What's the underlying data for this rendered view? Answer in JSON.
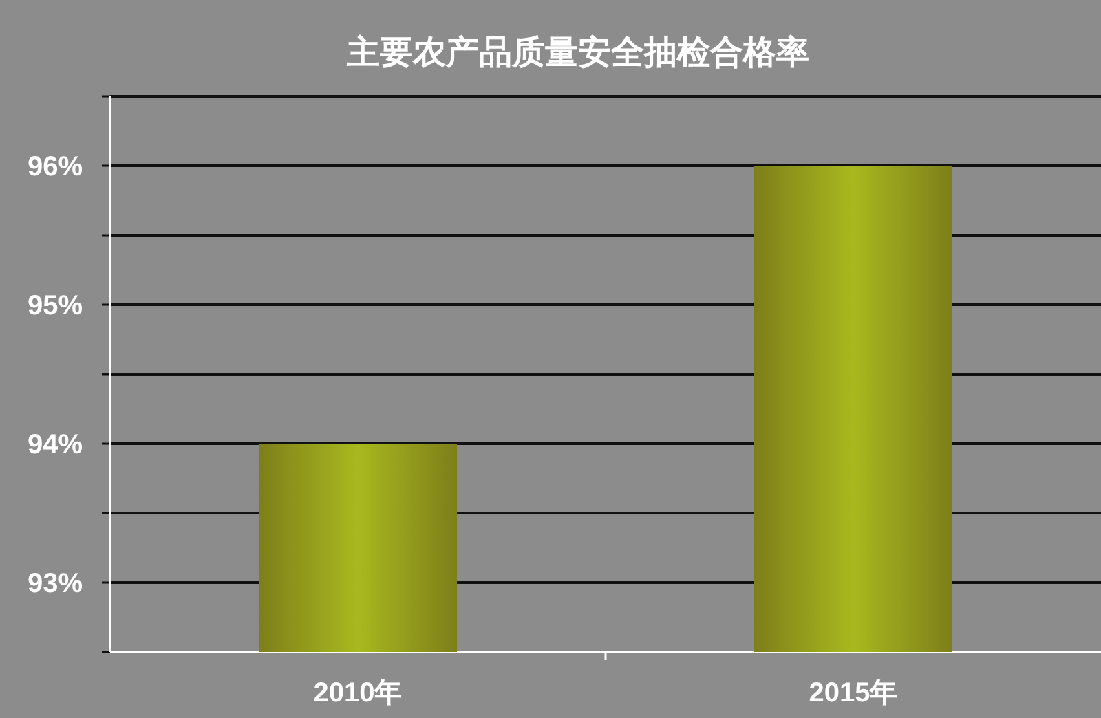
{
  "chart_data": {
    "type": "bar",
    "title": "主要农产品质量安全抽检合格率",
    "categories": [
      "2010年",
      "2015年"
    ],
    "values": [
      94,
      96
    ],
    "color": "#a9b81e",
    "ylim": [
      92.5,
      96.5
    ],
    "yticks": [
      {
        "value": 92.5,
        "label": null
      },
      {
        "value": 93,
        "label": "93%"
      },
      {
        "value": 93.5,
        "label": null
      },
      {
        "value": 94,
        "label": "94%"
      },
      {
        "value": 94.5,
        "label": null
      },
      {
        "value": 95,
        "label": "95%"
      },
      {
        "value": 95.5,
        "label": null
      },
      {
        "value": 96,
        "label": "96%"
      },
      {
        "value": 96.5,
        "label": null
      }
    ],
    "grid": "y"
  }
}
